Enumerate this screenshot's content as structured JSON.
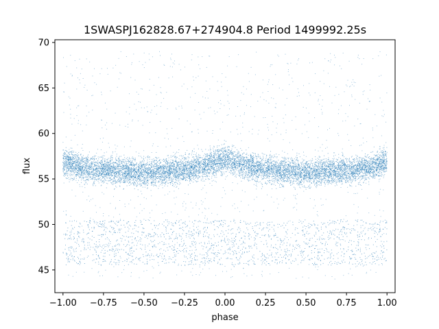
{
  "chart_data": {
    "type": "scatter",
    "title": "1SWASPJ162828.67+274904.8 Period 1499992.25s",
    "xlabel": "phase",
    "ylabel": "flux",
    "xlim": [
      -1.05,
      1.05
    ],
    "ylim": [
      42.5,
      70.3
    ],
    "x_ticks": [
      -1.0,
      -0.75,
      -0.5,
      -0.25,
      0.0,
      0.25,
      0.5,
      0.75,
      1.0
    ],
    "x_tick_labels": [
      "−1.00",
      "−0.75",
      "−0.50",
      "−0.25",
      "0.00",
      "0.25",
      "0.50",
      "0.75",
      "1.00"
    ],
    "y_ticks": [
      45,
      50,
      55,
      60,
      65,
      70
    ],
    "y_tick_labels": [
      "45",
      "50",
      "55",
      "60",
      "65",
      "70"
    ],
    "grid": false,
    "legend": "none",
    "marker_color": "#1f77b4",
    "series": [
      {
        "x_range": [
          -1.0,
          1.0
        ],
        "symmetric_about_phase_zero": true,
        "main_band_x": [
          -1.0,
          -0.9,
          -0.8,
          -0.7,
          -0.6,
          -0.5,
          -0.4,
          -0.3,
          -0.2,
          -0.1,
          0.0,
          0.1,
          0.2,
          0.3,
          0.4,
          0.5,
          0.6,
          0.7,
          0.8,
          0.9,
          1.0
        ],
        "main_band_center": [
          56.9,
          56.3,
          56.0,
          55.9,
          55.8,
          55.7,
          55.8,
          56.0,
          56.2,
          56.6,
          57.2,
          56.6,
          56.2,
          56.0,
          55.8,
          55.7,
          55.8,
          55.9,
          56.0,
          56.3,
          56.9
        ],
        "main_band_half_width": 1.4,
        "low_band_y_range": [
          45.5,
          50.5
        ],
        "outlier_y_range": [
          44,
          69
        ]
      }
    ]
  }
}
